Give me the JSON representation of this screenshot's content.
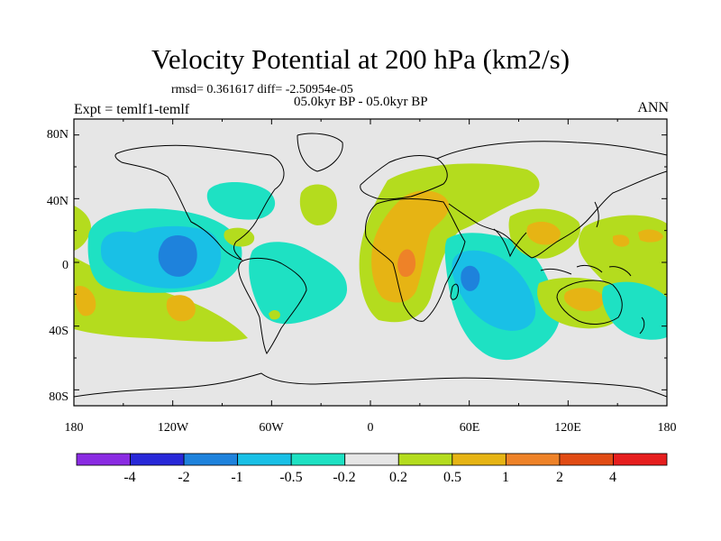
{
  "header": {
    "title": "Velocity Potential at 200 hPa (km2/s)",
    "stats": "rmsd= 0.361617 diff= -2.50954e-05",
    "period": "05.0kyr BP - 05.0kyr BP",
    "experiment": "Expt = temlf1-temlf",
    "season": "ANN"
  },
  "chart_data": {
    "type": "heatmap",
    "title": "Velocity Potential at 200 hPa (km2/s)",
    "projection": "cylindrical-equidistant",
    "lon_range": [
      -180,
      180
    ],
    "lat_range": [
      -90,
      90
    ],
    "lon_ticks": [
      "180",
      "120W",
      "60W",
      "0",
      "60E",
      "120E",
      "180"
    ],
    "lat_ticks": [
      "80N",
      "40N",
      "0",
      "40S",
      "80S"
    ],
    "contour_levels": [
      -4,
      -2,
      -1,
      -0.5,
      -0.2,
      0.2,
      0.5,
      1,
      2,
      4
    ],
    "colorbar_labels": [
      "-4",
      "-2",
      "-1",
      "-0.5",
      "-0.2",
      "0.2",
      "0.5",
      "1",
      "2",
      "4"
    ],
    "colors": [
      "#8a2be2",
      "#2828d8",
      "#1e82dc",
      "#19c0e6",
      "#1ee1c3",
      "#e6e6e6",
      "#b4dc1e",
      "#e6b414",
      "#ee8228",
      "#e14b14",
      "#e61e1e"
    ],
    "features": [
      {
        "region": "central tropical Pacific",
        "lon": -130,
        "lat": 5,
        "value": -1.2
      },
      {
        "region": "Indian Ocean",
        "lon": 60,
        "lat": -10,
        "value": -1.2
      },
      {
        "region": "central Africa",
        "lon": 20,
        "lat": 0,
        "value": 1.2
      },
      {
        "region": "North Africa / Middle East",
        "lon": 30,
        "lat": 30,
        "value": 0.6
      },
      {
        "region": "South Pacific",
        "lon": -120,
        "lat": -25,
        "value": 0.6
      },
      {
        "region": "far western Pacific",
        "lon": -175,
        "lat": -20,
        "value": 0.6
      },
      {
        "region": "Maritime Continent",
        "lon": 110,
        "lat": 10,
        "value": 0.6
      },
      {
        "region": "Australia",
        "lon": 130,
        "lat": -20,
        "value": 0.6
      },
      {
        "region": "South America / Atlantic",
        "lon": -50,
        "lat": -10,
        "value": -0.3
      },
      {
        "region": "North America",
        "lon": -90,
        "lat": 45,
        "value": -0.3
      }
    ]
  }
}
